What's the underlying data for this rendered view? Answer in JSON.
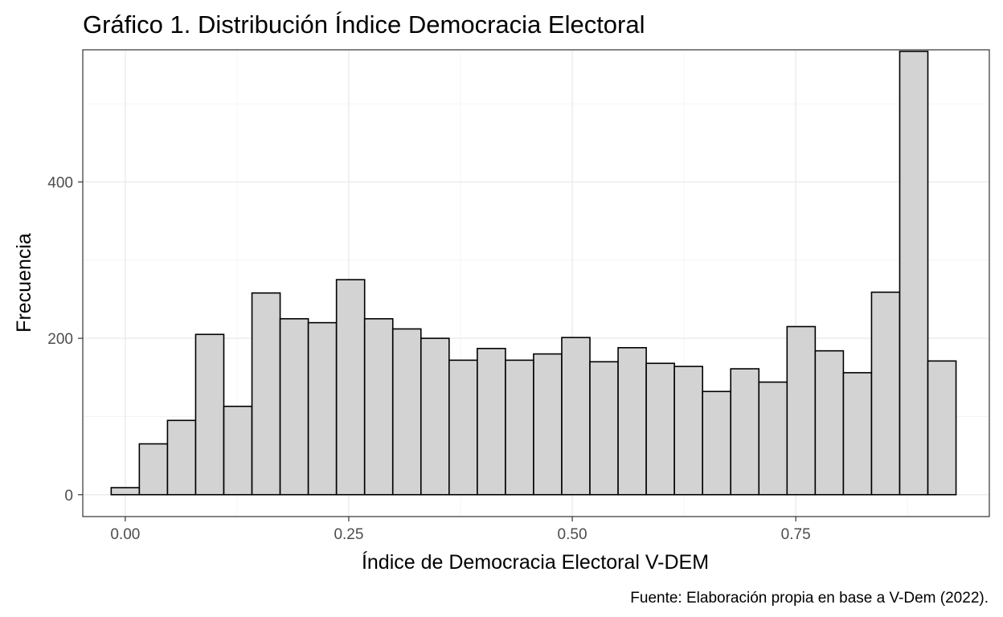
{
  "chart_data": {
    "type": "bar",
    "title": "Gráfico 1. Distribución Índice Democracia Electoral",
    "xlabel": "Índice de Democracia Electoral V-DEM",
    "ylabel": "Frecuencia",
    "caption": "Fuente: Elaboración propia en base a V-Dem (2022).",
    "histogram": true,
    "bin_width": 0.0315,
    "bar_fill": "#d3d3d3",
    "bar_stroke": "#000000",
    "xlim": [
      -0.0475,
      0.9665
    ],
    "ylim": [
      -28,
      569
    ],
    "x_ticks": [
      0.0,
      0.25,
      0.5,
      0.75
    ],
    "x_tick_labels": [
      "0.00",
      "0.25",
      "0.50",
      "0.75"
    ],
    "y_ticks": [
      0,
      200,
      400
    ],
    "y_tick_labels": [
      "0",
      "200",
      "400"
    ],
    "grid": true,
    "bins": [
      {
        "x": 0.0,
        "value": 9
      },
      {
        "x": 0.0315,
        "value": 65
      },
      {
        "x": 0.063,
        "value": 95
      },
      {
        "x": 0.0945,
        "value": 205
      },
      {
        "x": 0.126,
        "value": 113
      },
      {
        "x": 0.1575,
        "value": 258
      },
      {
        "x": 0.189,
        "value": 225
      },
      {
        "x": 0.2205,
        "value": 220
      },
      {
        "x": 0.252,
        "value": 275
      },
      {
        "x": 0.2835,
        "value": 225
      },
      {
        "x": 0.315,
        "value": 212
      },
      {
        "x": 0.3465,
        "value": 200
      },
      {
        "x": 0.378,
        "value": 172
      },
      {
        "x": 0.4095,
        "value": 187
      },
      {
        "x": 0.441,
        "value": 172
      },
      {
        "x": 0.4725,
        "value": 180
      },
      {
        "x": 0.504,
        "value": 201
      },
      {
        "x": 0.5355,
        "value": 170
      },
      {
        "x": 0.567,
        "value": 188
      },
      {
        "x": 0.5985,
        "value": 168
      },
      {
        "x": 0.63,
        "value": 164
      },
      {
        "x": 0.6615,
        "value": 132
      },
      {
        "x": 0.693,
        "value": 161
      },
      {
        "x": 0.7245,
        "value": 144
      },
      {
        "x": 0.756,
        "value": 215
      },
      {
        "x": 0.7875,
        "value": 184
      },
      {
        "x": 0.819,
        "value": 156
      },
      {
        "x": 0.8505,
        "value": 259
      },
      {
        "x": 0.882,
        "value": 567
      },
      {
        "x": 0.9135,
        "value": 171
      }
    ]
  }
}
